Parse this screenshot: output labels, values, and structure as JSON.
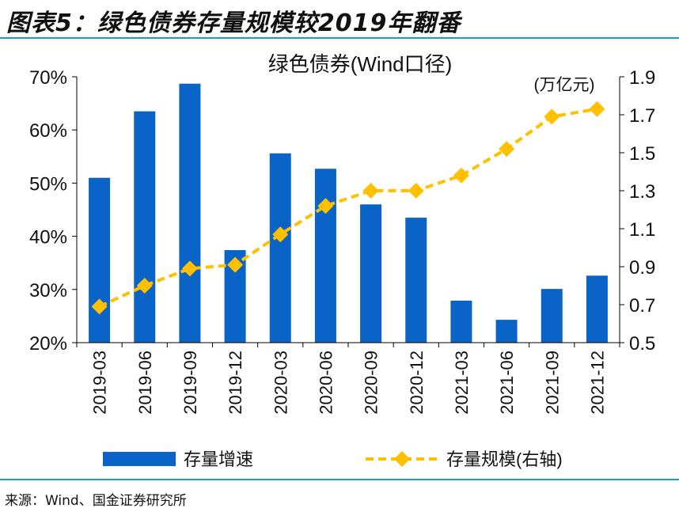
{
  "figure_title": "图表5：绿色债券存量规模较2019年翻番",
  "source": "来源：Wind、国金证券研究所",
  "colors": {
    "bar": "#0a64c8",
    "line": "#ffc000",
    "rule": "#1a9bd7"
  },
  "chart_data": {
    "type": "bar+line",
    "title": "绿色债券(Wind口径)",
    "categories": [
      "2019-03",
      "2019-06",
      "2019-09",
      "2019-12",
      "2020-03",
      "2020-06",
      "2020-09",
      "2020-12",
      "2021-03",
      "2021-06",
      "2021-09",
      "2021-12"
    ],
    "left_axis": {
      "ylim": [
        20,
        70
      ],
      "ticks": [
        "20%",
        "30%",
        "40%",
        "50%",
        "60%",
        "70%"
      ],
      "unit": "%"
    },
    "right_axis": {
      "ylim": [
        0.5,
        1.9
      ],
      "ticks": [
        "0.5",
        "0.7",
        "0.9",
        "1.1",
        "1.3",
        "1.5",
        "1.7",
        "1.9"
      ],
      "label": "(万亿元)"
    },
    "series": [
      {
        "name": "存量增速",
        "type": "bar",
        "axis": "left",
        "values": [
          51.0,
          63.5,
          68.7,
          37.4,
          55.6,
          52.7,
          46.0,
          43.5,
          27.9,
          24.3,
          30.1,
          32.6
        ]
      },
      {
        "name": "存量规模(右轴)",
        "type": "line",
        "axis": "right",
        "values": [
          0.69,
          0.8,
          0.89,
          0.91,
          1.07,
          1.22,
          1.3,
          1.3,
          1.38,
          1.52,
          1.69,
          1.73
        ]
      }
    ],
    "grid": false,
    "legend": "bottom"
  }
}
